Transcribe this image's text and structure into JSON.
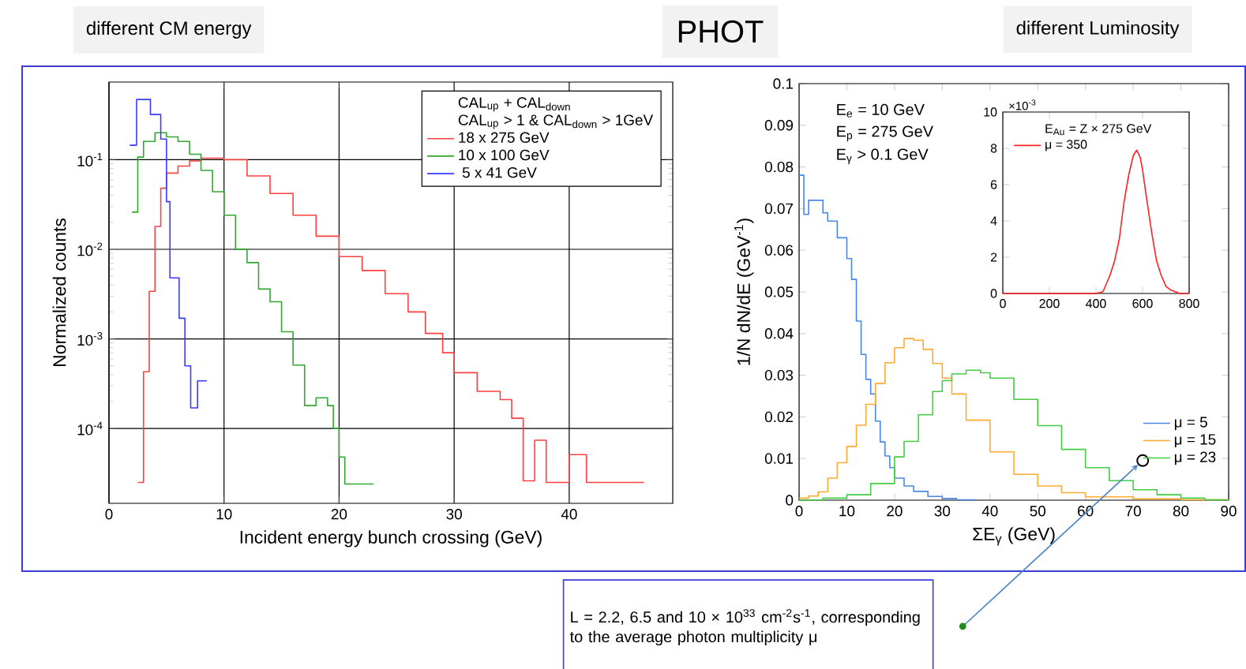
{
  "chart_data": [
    {
      "type": "step",
      "title": "different CM energy",
      "xlabel": "Incident energy bunch crossing (GeV)",
      "ylabel": "Normalized counts",
      "legend_title": "CAL$_{up}$ + CAL$_{down}$",
      "annotations": [
        "CAL$_{up}$ > 1 & CAL$_{down}$ > 1GeV",
        "PHOT"
      ],
      "log": "y",
      "grid": true,
      "legend": "top right",
      "xlim": [
        0,
        49
      ],
      "ylim": [
        1.46e-05,
        0.736
      ],
      "xticks": [
        0,
        10,
        20,
        30,
        40
      ],
      "yticks": [
        {
          "value": 0.0001,
          "label": "10$^{-4}$"
        },
        {
          "value": 0.001,
          "label": "10$^{-3}$"
        },
        {
          "value": 0.01,
          "label": "10$^{-2}$"
        },
        {
          "value": 0.1,
          "label": "10$^{-1}$"
        }
      ],
      "series": [
        {
          "name": "18 x 275 GeV",
          "color": "#ff4040",
          "x": [
            2.5,
            3,
            3.5,
            4,
            4.5,
            5,
            6,
            7,
            8,
            10,
            12,
            14,
            16,
            18,
            20,
            22,
            24,
            26,
            27.5,
            29,
            30,
            32,
            34,
            35,
            36,
            37,
            38,
            40,
            41.5,
            46.5
          ],
          "values": [
            2.5e-05,
            0.00043,
            0.0034,
            0.018,
            0.048,
            0.071,
            0.085,
            0.097,
            0.104,
            0.1,
            0.066,
            0.042,
            0.024,
            0.014,
            0.0083,
            0.0058,
            0.0032,
            0.002,
            0.00115,
            0.0007,
            0.00042,
            0.00026,
            0.00021,
            0.00013,
            2.6e-05,
            7.4e-05,
            2.5e-05,
            5.1e-05,
            2.5e-05,
            2.5e-05
          ]
        },
        {
          "name": "10 x 100 GeV",
          "color": "#30a830",
          "x": [
            2,
            2.5,
            3,
            4,
            5,
            6,
            7,
            8,
            9,
            10,
            11,
            12,
            13,
            14,
            15,
            16,
            17,
            18,
            19,
            19.5,
            20,
            20.5,
            23
          ],
          "values": [
            0.026,
            0.107,
            0.16,
            0.2,
            0.18,
            0.16,
            0.115,
            0.076,
            0.044,
            0.024,
            0.01,
            0.0071,
            0.0036,
            0.0026,
            0.0012,
            0.00051,
            0.00018,
            0.00022,
            0.00018,
            0.0001,
            4.8e-05,
            2.4e-05,
            2.4e-05
          ]
        },
        {
          "name": " 5 x 41 GeV",
          "color": "#3a3aff",
          "x": [
            1.8,
            2.4,
            3.6,
            4.5,
            5,
            5.3,
            6.1,
            6.6,
            7.1,
            7.7,
            8.5
          ],
          "values": [
            0.145,
            0.47,
            0.32,
            0.17,
            0.034,
            0.0048,
            0.0017,
            0.0005,
            0.00017,
            0.00034,
            0.00034
          ]
        }
      ]
    },
    {
      "type": "step",
      "title": "different Luminosity",
      "xlabel": "ΣE$_{γ}$ (GeV)",
      "ylabel": "1/N dN/dE (GeV$^{-1}$)",
      "annotations": [
        "E$_{e}$ = 10 GeV",
        "E$_{p}$ = 275 GeV",
        "E$_{γ}$ > 0.1 GeV",
        "L = 2.2, 6.5 and 10 × 10$^{33}$ cm$^{-2}$s$^{-1}$, corresponding to the average photon multiplicity μ"
      ],
      "legend": "bottom right",
      "xlim": [
        0,
        90
      ],
      "ylim": [
        0,
        0.1
      ],
      "xticks": [
        0,
        10,
        20,
        30,
        40,
        50,
        60,
        70,
        80,
        90
      ],
      "yticks": [
        0,
        0.01,
        0.02,
        0.03,
        0.04,
        0.05,
        0.06,
        0.07,
        0.08,
        0.09,
        0.1
      ],
      "series": [
        {
          "name": "μ = 5",
          "color": "#4a86e8",
          "x": [
            0,
            1,
            2,
            4,
            5,
            6,
            8,
            10,
            11,
            12,
            13,
            14,
            15,
            16,
            17,
            18,
            19,
            20,
            22,
            24,
            27,
            30,
            33,
            37
          ],
          "values": [
            0.078,
            0.0686,
            0.072,
            0.072,
            0.069,
            0.067,
            0.063,
            0.058,
            0.053,
            0.043,
            0.035,
            0.029,
            0.0255,
            0.019,
            0.014,
            0.0106,
            0.0078,
            0.0053,
            0.0034,
            0.0021,
            0.0009,
            0.0004,
            0.0001,
            0
          ]
        },
        {
          "name": "μ = 15",
          "color": "#ffaa33",
          "x": [
            0,
            2,
            4,
            6,
            8,
            10,
            12,
            14,
            16,
            18,
            20,
            22,
            24,
            26,
            28,
            30,
            32,
            35,
            40,
            45,
            50,
            55,
            60,
            70,
            80,
            90
          ],
          "values": [
            0.0005,
            0.001,
            0.002,
            0.0053,
            0.009,
            0.0129,
            0.018,
            0.023,
            0.028,
            0.033,
            0.0366,
            0.0388,
            0.0384,
            0.0362,
            0.0328,
            0.0293,
            0.0255,
            0.0192,
            0.0116,
            0.0062,
            0.0034,
            0.0018,
            0.0008,
            0.0003,
            0.0001,
            0
          ]
        },
        {
          "name": "μ = 23",
          "color": "#44cc44",
          "x": [
            0,
            5,
            10,
            15,
            20,
            22,
            25,
            28,
            30,
            32,
            35,
            38,
            40,
            45,
            50,
            55,
            60,
            65,
            70,
            75,
            80,
            85,
            90
          ],
          "values": [
            0,
            0.0005,
            0.0013,
            0.004,
            0.0104,
            0.0141,
            0.0205,
            0.0261,
            0.0287,
            0.0303,
            0.0312,
            0.0306,
            0.0293,
            0.0242,
            0.0179,
            0.0122,
            0.0078,
            0.0047,
            0.0025,
            0.0013,
            0.0005,
            0.0001,
            0
          ]
        }
      ]
    },
    {
      "type": "line",
      "legend_title": "E$_{Au}$ = Z × 275 GeV",
      "annotations": [
        "×10$^{-3}$"
      ],
      "legend": "top left",
      "xlim": [
        0,
        800
      ],
      "ylim": [
        0,
        10
      ],
      "xticks": [
        0,
        200,
        400,
        600,
        800
      ],
      "yticks": [
        0,
        2,
        4,
        6,
        8,
        10
      ],
      "series": [
        {
          "name": "μ = 350",
          "color": "#ff2020",
          "x": [
            0,
            400,
            430,
            460,
            480,
            500,
            520,
            540,
            560,
            575,
            590,
            600,
            620,
            640,
            660,
            680,
            700,
            720,
            740,
            760,
            800
          ],
          "values": [
            0,
            0,
            0.1,
            1.0,
            1.8,
            3.0,
            5.0,
            6.5,
            7.6,
            7.9,
            7.5,
            6.8,
            5.0,
            3.3,
            1.8,
            1.0,
            0.4,
            0.2,
            0.1,
            0,
            0
          ]
        }
      ]
    }
  ]
}
